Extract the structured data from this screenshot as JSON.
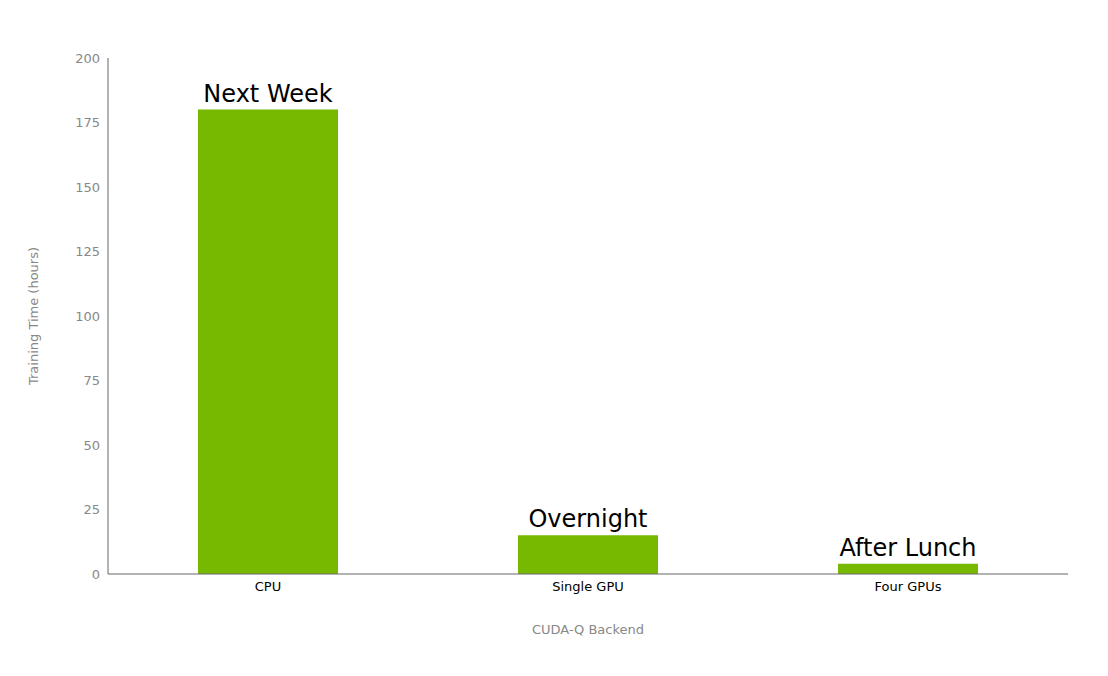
{
  "chart_data": {
    "type": "bar",
    "categories": [
      "CPU",
      "Single GPU",
      "Four GPUs"
    ],
    "values": [
      180,
      15,
      4
    ],
    "color": "#76b900",
    "annotations": [
      "Next Week",
      "Overnight",
      "After Lunch"
    ],
    "xlabel": "CUDA-Q Backend",
    "ylabel": "Training Time (hours)",
    "ylim": [
      0,
      200
    ],
    "yticks": [
      0,
      25,
      50,
      75,
      100,
      125,
      150,
      175,
      200
    ],
    "grid": false
  }
}
